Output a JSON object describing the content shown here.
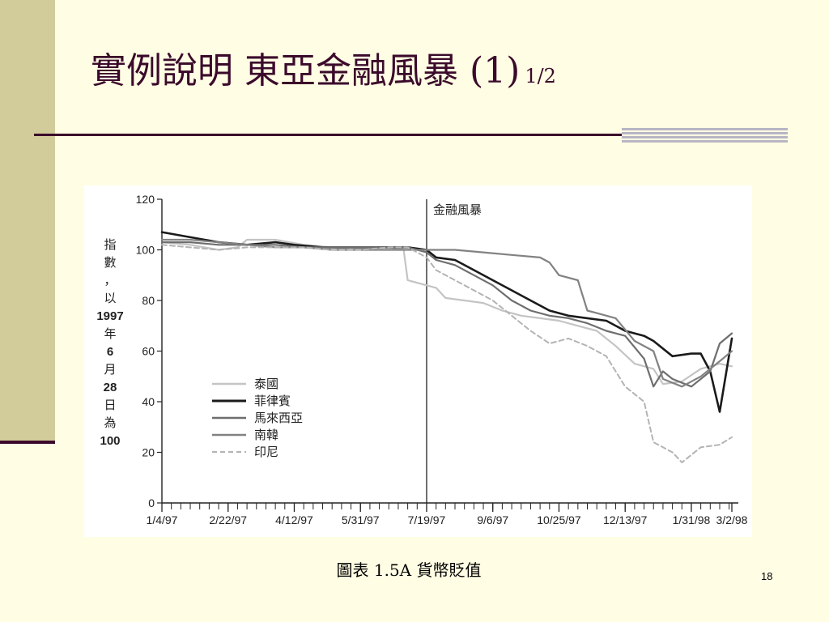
{
  "slide": {
    "title": "實例說明 東亞金融風暴 (1)",
    "title_sub": "1/2",
    "caption": "圖表 1.5A  貨幣貶值",
    "page_number": "18"
  },
  "colors": {
    "background": "#fffde4",
    "accent": "#3b0a2b",
    "sidebar": "#d2cc9a"
  },
  "chart_data": {
    "type": "line",
    "ylabel_lines": [
      "指",
      "數",
      "，",
      "以",
      "1997",
      "年",
      "6",
      "月",
      "28",
      "日",
      "為",
      "100"
    ],
    "ylim": [
      0,
      120
    ],
    "yticks": [
      0,
      20,
      40,
      60,
      80,
      100,
      120
    ],
    "xlim": [
      "1997-01-04",
      "1998-03-02"
    ],
    "xtick_labels": [
      "1/4/97",
      "2/22/97",
      "4/12/97",
      "5/31/97",
      "7/19/97",
      "9/6/97",
      "10/25/97",
      "12/13/97",
      "1/31/98",
      "3/2/98"
    ],
    "xtick_dates": [
      "1997-01-04",
      "1997-02-22",
      "1997-04-12",
      "1997-05-31",
      "1997-07-19",
      "1997-09-06",
      "1997-10-25",
      "1997-12-13",
      "1998-01-31",
      "1998-03-02"
    ],
    "annotation": {
      "date": "1997-07-19",
      "text": "金融風暴"
    },
    "legend_position": "lower-left",
    "series": [
      {
        "name": "泰國",
        "color": "#c4c4c4",
        "dash": "none",
        "width": 2.2,
        "points": [
          [
            "1997-01-04",
            103
          ],
          [
            "1997-01-25",
            102
          ],
          [
            "1997-02-15",
            100
          ],
          [
            "1997-03-01",
            101
          ],
          [
            "1997-03-08",
            104
          ],
          [
            "1997-03-29",
            104
          ],
          [
            "1997-04-19",
            102
          ],
          [
            "1997-05-10",
            101
          ],
          [
            "1997-05-24",
            100
          ],
          [
            "1997-06-07",
            101
          ],
          [
            "1997-06-21",
            101
          ],
          [
            "1997-07-02",
            100
          ],
          [
            "1997-07-05",
            88
          ],
          [
            "1997-07-19",
            86
          ],
          [
            "1997-07-26",
            85
          ],
          [
            "1997-08-02",
            81
          ],
          [
            "1997-08-16",
            80
          ],
          [
            "1997-08-30",
            79
          ],
          [
            "1997-09-13",
            76
          ],
          [
            "1997-09-27",
            74
          ],
          [
            "1997-10-11",
            73
          ],
          [
            "1997-10-25",
            72
          ],
          [
            "1997-11-08",
            70
          ],
          [
            "1997-11-22",
            68
          ],
          [
            "1997-12-06",
            62
          ],
          [
            "1997-12-20",
            55
          ],
          [
            "1998-01-03",
            53
          ],
          [
            "1998-01-10",
            47
          ],
          [
            "1998-01-24",
            48
          ],
          [
            "1998-02-07",
            53
          ],
          [
            "1998-02-21",
            55
          ],
          [
            "1998-03-02",
            54
          ]
        ]
      },
      {
        "name": "菲律賓",
        "color": "#1a1a1a",
        "dash": "none",
        "width": 2.6,
        "points": [
          [
            "1997-01-04",
            107
          ],
          [
            "1997-01-25",
            105
          ],
          [
            "1997-02-15",
            103
          ],
          [
            "1997-03-08",
            102
          ],
          [
            "1997-03-29",
            103
          ],
          [
            "1997-04-12",
            102
          ],
          [
            "1997-05-03",
            101
          ],
          [
            "1997-05-24",
            101
          ],
          [
            "1997-06-14",
            101
          ],
          [
            "1997-07-05",
            101
          ],
          [
            "1997-07-19",
            100
          ],
          [
            "1997-07-26",
            97
          ],
          [
            "1997-08-09",
            96
          ],
          [
            "1997-08-23",
            92
          ],
          [
            "1997-09-06",
            88
          ],
          [
            "1997-09-20",
            84
          ],
          [
            "1997-10-04",
            80
          ],
          [
            "1997-10-18",
            76
          ],
          [
            "1997-11-01",
            74
          ],
          [
            "1997-11-15",
            73
          ],
          [
            "1997-11-29",
            72
          ],
          [
            "1997-12-13",
            68
          ],
          [
            "1997-12-27",
            66
          ],
          [
            "1998-01-03",
            64
          ],
          [
            "1998-01-17",
            58
          ],
          [
            "1998-01-31",
            59
          ],
          [
            "1998-02-07",
            59
          ],
          [
            "1998-02-14",
            52
          ],
          [
            "1998-02-21",
            36
          ],
          [
            "1998-03-02",
            65
          ]
        ]
      },
      {
        "name": "馬來西亞",
        "color": "#6e6e6e",
        "dash": "none",
        "width": 2.2,
        "points": [
          [
            "1997-01-04",
            103
          ],
          [
            "1997-01-25",
            103
          ],
          [
            "1997-02-15",
            102
          ],
          [
            "1997-03-08",
            102
          ],
          [
            "1997-03-29",
            102
          ],
          [
            "1997-04-19",
            101
          ],
          [
            "1997-05-10",
            101
          ],
          [
            "1997-05-31",
            101
          ],
          [
            "1997-06-21",
            101
          ],
          [
            "1997-07-05",
            101
          ],
          [
            "1997-07-19",
            99
          ],
          [
            "1997-07-26",
            96
          ],
          [
            "1997-08-09",
            94
          ],
          [
            "1997-08-23",
            90
          ],
          [
            "1997-09-06",
            86
          ],
          [
            "1997-09-20",
            80
          ],
          [
            "1997-10-04",
            76
          ],
          [
            "1997-10-18",
            74
          ],
          [
            "1997-11-01",
            73
          ],
          [
            "1997-11-15",
            71
          ],
          [
            "1997-11-29",
            68
          ],
          [
            "1997-12-13",
            66
          ],
          [
            "1997-12-27",
            57
          ],
          [
            "1998-01-03",
            46
          ],
          [
            "1998-01-10",
            52
          ],
          [
            "1998-01-17",
            49
          ],
          [
            "1998-01-31",
            46
          ],
          [
            "1998-02-14",
            52
          ],
          [
            "1998-02-21",
            63
          ],
          [
            "1998-03-02",
            67
          ]
        ]
      },
      {
        "name": "南韓",
        "color": "#828282",
        "dash": "none",
        "width": 2.2,
        "points": [
          [
            "1997-01-04",
            104
          ],
          [
            "1997-01-25",
            104
          ],
          [
            "1997-02-15",
            103
          ],
          [
            "1997-03-08",
            102
          ],
          [
            "1997-03-29",
            101
          ],
          [
            "1997-04-19",
            101
          ],
          [
            "1997-05-10",
            100
          ],
          [
            "1997-05-31",
            100
          ],
          [
            "1997-06-21",
            100
          ],
          [
            "1997-07-05",
            100
          ],
          [
            "1997-07-19",
            100
          ],
          [
            "1997-08-09",
            100
          ],
          [
            "1997-08-30",
            99
          ],
          [
            "1997-09-20",
            98
          ],
          [
            "1997-10-11",
            97
          ],
          [
            "1997-10-18",
            95
          ],
          [
            "1997-10-25",
            90
          ],
          [
            "1997-11-08",
            88
          ],
          [
            "1997-11-15",
            76
          ],
          [
            "1997-11-22",
            75
          ],
          [
            "1997-12-06",
            73
          ],
          [
            "1997-12-20",
            64
          ],
          [
            "1998-01-03",
            60
          ],
          [
            "1998-01-10",
            49
          ],
          [
            "1998-01-24",
            46
          ],
          [
            "1998-02-07",
            50
          ],
          [
            "1998-02-21",
            56
          ],
          [
            "1998-03-02",
            60
          ]
        ]
      },
      {
        "name": "印尼",
        "color": "#b4b4b4",
        "dash": "6,4",
        "width": 2.0,
        "points": [
          [
            "1997-01-04",
            102
          ],
          [
            "1997-01-25",
            101
          ],
          [
            "1997-02-15",
            100
          ],
          [
            "1997-03-08",
            101
          ],
          [
            "1997-03-29",
            101
          ],
          [
            "1997-04-19",
            101
          ],
          [
            "1997-05-10",
            100
          ],
          [
            "1997-05-31",
            100
          ],
          [
            "1997-06-21",
            101
          ],
          [
            "1997-07-05",
            101
          ],
          [
            "1997-07-19",
            97
          ],
          [
            "1997-07-26",
            92
          ],
          [
            "1997-08-09",
            88
          ],
          [
            "1997-08-23",
            84
          ],
          [
            "1997-09-06",
            80
          ],
          [
            "1997-09-20",
            74
          ],
          [
            "1997-10-04",
            68
          ],
          [
            "1997-10-18",
            63
          ],
          [
            "1997-11-01",
            65
          ],
          [
            "1997-11-15",
            62
          ],
          [
            "1997-11-29",
            58
          ],
          [
            "1997-12-13",
            46
          ],
          [
            "1997-12-27",
            40
          ],
          [
            "1998-01-03",
            24
          ],
          [
            "1998-01-17",
            20
          ],
          [
            "1998-01-24",
            16
          ],
          [
            "1998-02-07",
            22
          ],
          [
            "1998-02-21",
            23
          ],
          [
            "1998-03-02",
            26
          ]
        ]
      }
    ]
  }
}
